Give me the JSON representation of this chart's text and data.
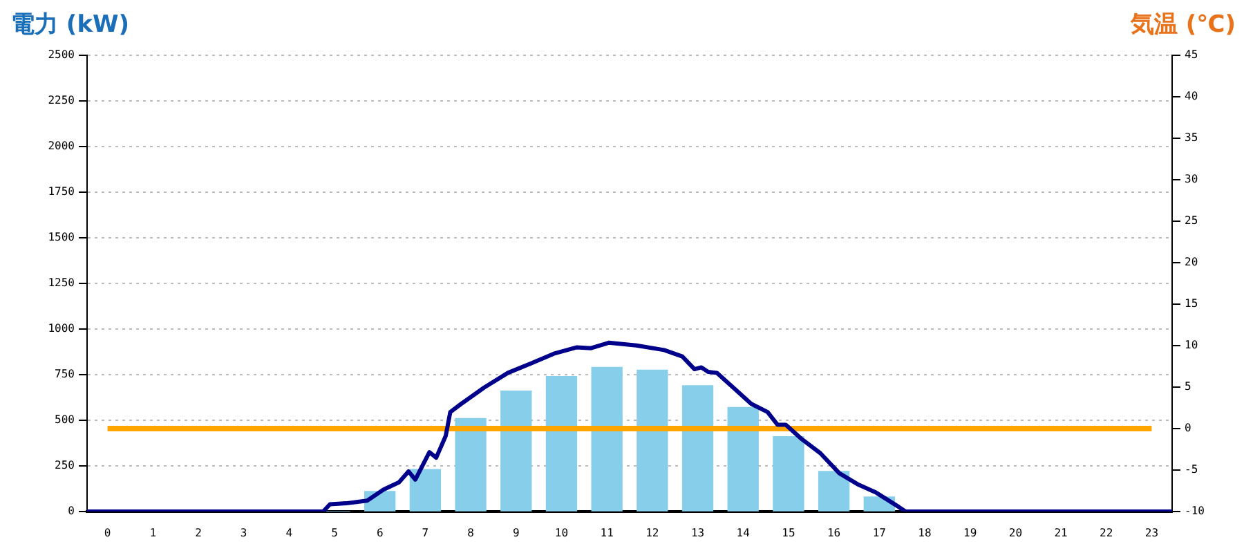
{
  "chart_data": {
    "type": "bar",
    "ylabel": "電力 (kW)",
    "y2label": "気温 (℃)",
    "x": [
      0,
      1,
      2,
      3,
      4,
      5,
      6,
      7,
      8,
      9,
      10,
      11,
      12,
      13,
      14,
      15,
      16,
      17,
      18,
      19,
      20,
      21,
      22,
      23
    ],
    "xlim": [
      -0.45,
      23.45
    ],
    "xticks": [
      0,
      1,
      2,
      3,
      4,
      5,
      6,
      7,
      8,
      9,
      10,
      11,
      12,
      13,
      14,
      15,
      16,
      17,
      18,
      19,
      20,
      21,
      22,
      23
    ],
    "ylim": [
      0,
      2500
    ],
    "yticks": [
      0,
      250,
      500,
      750,
      1000,
      1250,
      1500,
      1750,
      2000,
      2250,
      2500
    ],
    "y2lim": [
      -10,
      45
    ],
    "y2ticks": [
      -10,
      -5,
      0,
      5,
      10,
      15,
      20,
      25,
      30,
      35,
      40,
      45
    ],
    "grid": "y",
    "legend": false,
    "series": [
      {
        "color": "#87ceeb",
        "values": [
          0,
          0,
          0,
          0,
          0,
          0,
          110,
          230,
          510,
          660,
          740,
          790,
          775,
          690,
          570,
          410,
          220,
          80,
          0,
          0,
          0,
          0,
          0,
          0
        ]
      },
      {
        "type": "line",
        "color": "#00008b",
        "marker": "none",
        "x": [
          -0.45,
          4.75,
          4.9,
          5.26,
          5.72,
          6.08,
          6.42,
          6.63,
          6.78,
          7.09,
          7.24,
          7.45,
          7.55,
          7.79,
          8.3,
          8.82,
          9.31,
          9.83,
          10.34,
          10.65,
          11.04,
          11.65,
          12.26,
          12.66,
          12.93,
          13.08,
          13.23,
          13.42,
          13.78,
          14.18,
          14.54,
          14.76,
          14.94,
          15.3,
          15.7,
          16.12,
          16.52,
          16.92,
          17.43,
          17.58,
          23.45
        ],
        "values": [
          0,
          0,
          40,
          45,
          60,
          120,
          160,
          220,
          175,
          325,
          295,
          415,
          545,
          590,
          680,
          760,
          810,
          865,
          900,
          895,
          925,
          910,
          885,
          850,
          780,
          790,
          765,
          760,
          680,
          590,
          545,
          475,
          475,
          395,
          320,
          210,
          150,
          105,
          25,
          0,
          0
        ]
      },
      {
        "type": "line",
        "color": "#ffa500",
        "axis": "y2",
        "marker": "none",
        "x": [
          0,
          1,
          2,
          3,
          4,
          5,
          6,
          7,
          8,
          9,
          10,
          11,
          12,
          13,
          14,
          15,
          16,
          17,
          18,
          19,
          20,
          21,
          22,
          23
        ],
        "values": [
          0,
          0,
          0,
          0,
          0,
          0,
          0,
          0,
          0,
          0,
          0,
          0,
          0,
          0,
          0,
          0,
          0,
          0,
          0,
          0,
          0,
          0,
          0,
          0
        ]
      }
    ]
  }
}
